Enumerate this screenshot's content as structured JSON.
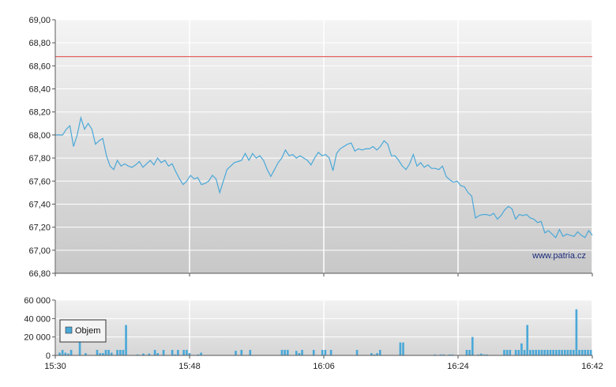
{
  "chart_data": [
    {
      "type": "line",
      "x_range": [
        "15:30",
        "16:42"
      ],
      "ylim": [
        66.8,
        69.0
      ],
      "y_ticks": [
        "69,00",
        "68,80",
        "68,60",
        "68,40",
        "68,20",
        "68,00",
        "67,80",
        "67,60",
        "67,40",
        "67,20",
        "67,00",
        "66,80"
      ],
      "x_ticks": [
        "15:30",
        "15:48",
        "16:06",
        "16:24",
        "16:42"
      ],
      "reference_line": {
        "value": 68.68,
        "color": "#e05050"
      },
      "line_color": "#4aa8d8",
      "watermark": "www.patria.cz",
      "series": [
        {
          "values": [
            68.0,
            68.0,
            68.0,
            68.05,
            68.08,
            67.9,
            68.0,
            68.15,
            68.05,
            68.1,
            68.05,
            67.92,
            67.95,
            67.97,
            67.82,
            67.73,
            67.7,
            67.78,
            67.73,
            67.75,
            67.73,
            67.72,
            67.74,
            67.77,
            67.72,
            67.75,
            67.78,
            67.74,
            67.8,
            67.76,
            67.78,
            67.73,
            67.75,
            67.68,
            67.62,
            67.57,
            67.6,
            67.65,
            67.62,
            67.63,
            67.57,
            67.58,
            67.6,
            67.65,
            67.62,
            67.5,
            67.6,
            67.7,
            67.73,
            67.76,
            67.77,
            67.78,
            67.84,
            67.78,
            67.84,
            67.8,
            67.82,
            67.78,
            67.7,
            67.64,
            67.7,
            67.76,
            67.8,
            67.87,
            67.82,
            67.83,
            67.8,
            67.82,
            67.8,
            67.78,
            67.74,
            67.8,
            67.85,
            67.82,
            67.83,
            67.8,
            67.69,
            67.84,
            67.88,
            67.9,
            67.92,
            67.93,
            67.86,
            67.88,
            67.87,
            67.88,
            67.88,
            67.9,
            67.87,
            67.9,
            67.95,
            67.92,
            67.82,
            67.82,
            67.78,
            67.73,
            67.7,
            67.75,
            67.83,
            67.73,
            67.76,
            67.72,
            67.74,
            67.71,
            67.71,
            67.7,
            67.73,
            67.64,
            67.61,
            67.59,
            67.6,
            67.56,
            67.55,
            67.5,
            67.47,
            67.28,
            67.3,
            67.31,
            67.31,
            67.3,
            67.32,
            67.27,
            67.3,
            67.35,
            67.38,
            67.36,
            67.27,
            67.31,
            67.3,
            67.31,
            67.28,
            67.27,
            67.24,
            67.25,
            67.15,
            67.17,
            67.14,
            67.11,
            67.18,
            67.12,
            67.14,
            67.13,
            67.12,
            67.16,
            67.13,
            67.11,
            67.17,
            67.13
          ]
        }
      ]
    },
    {
      "type": "bar",
      "name": "Objem",
      "ylim": [
        0,
        60000
      ],
      "y_ticks": [
        "60 000",
        "40 000",
        "20 000",
        "0"
      ],
      "x_ticks": [
        "15:30",
        "15:48",
        "16:06",
        "16:24",
        "16:42"
      ],
      "bar_color": "#4aa8d8",
      "values": [
        0,
        3000,
        6000,
        3000,
        2000,
        6000,
        0,
        0,
        17000,
        0,
        2500,
        0,
        0,
        0,
        6000,
        2500,
        2500,
        6000,
        6000,
        3000,
        0,
        6000,
        6000,
        6000,
        33000,
        0,
        0,
        0,
        1000,
        0,
        2000,
        0,
        2000,
        0,
        6000,
        2500,
        0,
        6000,
        0,
        0,
        6000,
        1000,
        6000,
        0,
        6000,
        6000,
        2500,
        0,
        0,
        1000,
        3000,
        0,
        0,
        0,
        0,
        0,
        0,
        0,
        0,
        0,
        0,
        0,
        5000,
        0,
        6000,
        0,
        0,
        6000,
        0,
        0,
        0,
        0,
        0,
        0,
        0,
        0,
        0,
        0,
        6000,
        6000,
        6000,
        0,
        0,
        5000,
        2500,
        6000,
        0,
        0,
        0,
        6000,
        0,
        0,
        6000,
        6000,
        0,
        6000,
        0,
        0,
        0,
        0,
        0,
        0,
        0,
        0,
        6000,
        0,
        0,
        0,
        0,
        2500,
        1000,
        2500,
        6000,
        0,
        0,
        0,
        0,
        0,
        0,
        14000,
        14000,
        0,
        0,
        0,
        0,
        0,
        0,
        0,
        0,
        0,
        0,
        1000,
        0,
        1000,
        1000,
        0,
        1000,
        1000,
        0,
        0,
        0,
        0,
        6000,
        6000,
        20000,
        0,
        1000,
        2000,
        1000,
        1000,
        0,
        0,
        0,
        0,
        0,
        6000,
        6000,
        6000,
        0,
        6000,
        6000,
        13000,
        6000,
        33000,
        6000,
        6000,
        6000,
        6000,
        6000,
        6000,
        6000,
        6000,
        6000,
        6000,
        6000,
        6000,
        6000,
        6000,
        6000,
        6000,
        50000,
        6000,
        6000,
        6000,
        6000,
        6000
      ]
    }
  ]
}
